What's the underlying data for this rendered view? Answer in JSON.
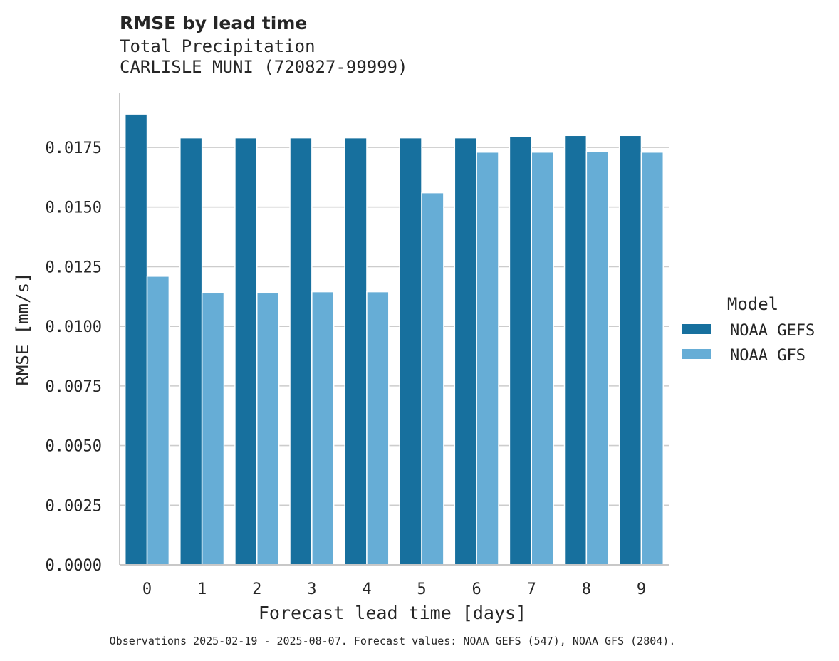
{
  "chart_data": {
    "type": "bar",
    "title": "RMSE by lead time",
    "subtitle_lines": [
      "Total Precipitation",
      "CARLISLE MUNI (720827-99999)"
    ],
    "xlabel": "Forecast lead time [days]",
    "ylabel": "RMSE [mm/s]",
    "categories": [
      "0",
      "1",
      "2",
      "3",
      "4",
      "5",
      "6",
      "7",
      "8",
      "9"
    ],
    "ylim": [
      0,
      0.0198
    ],
    "yticks": [
      0.0,
      0.0025,
      0.005,
      0.0075,
      0.01,
      0.0125,
      0.015,
      0.0175
    ],
    "ytick_labels": [
      "0.0000",
      "0.0025",
      "0.0050",
      "0.0075",
      "0.0100",
      "0.0125",
      "0.0150",
      "0.0175"
    ],
    "grid": "y",
    "legend": {
      "title": "Model",
      "placement": "right"
    },
    "series": [
      {
        "name": "NOAA GEFS",
        "color": "#17709e",
        "values": [
          0.0189,
          0.0179,
          0.0179,
          0.0179,
          0.0179,
          0.0179,
          0.0179,
          0.01795,
          0.018,
          0.018
        ]
      },
      {
        "name": "NOAA GFS",
        "color": "#66add6",
        "values": [
          0.0121,
          0.0114,
          0.0114,
          0.01145,
          0.01145,
          0.0156,
          0.0173,
          0.0173,
          0.01733,
          0.0173
        ]
      }
    ],
    "footnote": "Observations 2025-02-19 - 2025-08-07. Forecast values: NOAA GEFS (547), NOAA GFS (2804)."
  }
}
